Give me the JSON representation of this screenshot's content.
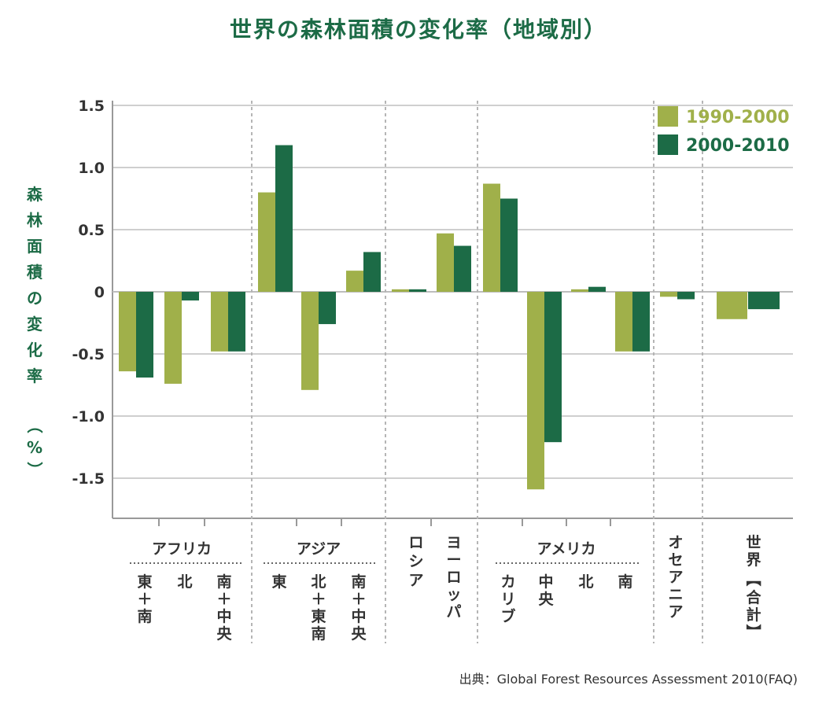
{
  "title": "世界の森林面積の変化率（地域別）",
  "source": "出典：Global Forest Resources Assessment 2010(FAQ)",
  "chart_data": {
    "type": "bar",
    "title": "世界の森林面積の変化率（地域別）",
    "ylabel": "森林面積の変化率（%）",
    "ylim": [
      -1.8,
      1.5
    ],
    "yticks": [
      "1.5",
      "1.0",
      "0.5",
      "0",
      "-0.5",
      "-1.0",
      "-1.5"
    ],
    "legend_position": "top-right",
    "colors": {
      "s1990": "#a0b04a",
      "s2000": "#1c6b46",
      "axis": "#999999",
      "text": "#333333"
    },
    "series": [
      {
        "name": "1990-2000",
        "values": [
          -0.64,
          -0.74,
          -0.48,
          0.8,
          -0.79,
          0.17,
          0.02,
          0.47,
          0.87,
          -1.59,
          0.02,
          -0.48,
          -0.04,
          -0.22
        ]
      },
      {
        "name": "2000-2010",
        "values": [
          -0.69,
          -0.07,
          -0.48,
          1.18,
          -0.26,
          0.32,
          0.02,
          0.37,
          0.75,
          -1.21,
          0.04,
          -0.48,
          -0.06,
          -0.14
        ]
      }
    ],
    "groups": [
      {
        "name": "アフリカ",
        "cats": [
          [
            "東",
            "＋",
            "南"
          ],
          [
            "北"
          ],
          [
            "南",
            "＋",
            "中央"
          ]
        ]
      },
      {
        "name": "アジア",
        "cats": [
          [
            "東"
          ],
          [
            "北",
            "＋",
            "東南"
          ],
          [
            "南",
            "＋",
            "中央"
          ]
        ]
      },
      {
        "name": "",
        "cats": [
          [
            "ロシア"
          ],
          [
            "ヨーロッパ"
          ]
        ]
      },
      {
        "name": "アメリカ",
        "cats": [
          [
            "カリブ"
          ],
          [
            "中央"
          ],
          [
            "北"
          ],
          [
            "南"
          ]
        ]
      },
      {
        "name": "",
        "cats": [
          [
            "オセアニア"
          ]
        ]
      },
      {
        "name": "",
        "cats": [
          [
            "世界【合計】"
          ]
        ]
      }
    ]
  }
}
